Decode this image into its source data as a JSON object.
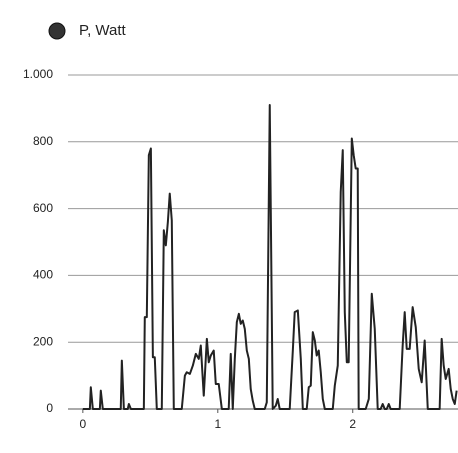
{
  "chart_data": {
    "type": "line",
    "series": [
      {
        "name": "P, Watt",
        "color": "#222222",
        "x": [
          0,
          0.052,
          0.059,
          0.074,
          0.126,
          0.133,
          0.148,
          0.281,
          0.289,
          0.304,
          0.333,
          0.341,
          0.356,
          0.452,
          0.459,
          0.474,
          0.489,
          0.504,
          0.519,
          0.533,
          0.548,
          0.585,
          0.6,
          0.615,
          0.63,
          0.644,
          0.659,
          0.674,
          0.733,
          0.756,
          0.77,
          0.793,
          0.815,
          0.837,
          0.859,
          0.874,
          0.896,
          0.919,
          0.933,
          0.948,
          0.97,
          0.985,
          1.007,
          1.03,
          1.081,
          1.096,
          1.111,
          1.126,
          1.141,
          1.156,
          1.17,
          1.185,
          1.2,
          1.215,
          1.23,
          1.244,
          1.259,
          1.274,
          1.348,
          1.363,
          1.385,
          1.407,
          1.43,
          1.444,
          1.459,
          1.533,
          1.556,
          1.57,
          1.593,
          1.615,
          1.63,
          1.659,
          1.674,
          1.689,
          1.704,
          1.719,
          1.733,
          1.748,
          1.763,
          1.778,
          1.793,
          1.852,
          1.867,
          1.889,
          1.911,
          1.926,
          1.941,
          1.956,
          1.97,
          1.993,
          2.007,
          2.022,
          2.037,
          2.044,
          2.096,
          2.119,
          2.141,
          2.163,
          2.185,
          2.207,
          2.222,
          2.237,
          2.252,
          2.267,
          2.281,
          2.348,
          2.37,
          2.385,
          2.4,
          2.422,
          2.444,
          2.467,
          2.489,
          2.511,
          2.533,
          2.556,
          2.644,
          2.659,
          2.674,
          2.689,
          2.711,
          2.726,
          2.741,
          2.756,
          2.77
        ],
        "values": [
          0,
          0,
          65,
          0,
          0,
          55,
          0,
          0,
          145,
          0,
          0,
          15,
          0,
          0,
          275,
          275,
          760,
          780,
          155,
          155,
          0,
          0,
          535,
          490,
          560,
          645,
          565,
          0,
          0,
          100,
          110,
          105,
          130,
          165,
          150,
          190,
          40,
          210,
          140,
          160,
          175,
          75,
          75,
          0,
          0,
          165,
          0,
          150,
          260,
          285,
          255,
          265,
          240,
          175,
          150,
          60,
          25,
          0,
          0,
          20,
          910,
          0,
          10,
          30,
          0,
          0,
          175,
          290,
          295,
          150,
          0,
          0,
          65,
          70,
          230,
          205,
          160,
          175,
          110,
          30,
          0,
          0,
          70,
          130,
          650,
          775,
          290,
          140,
          140,
          810,
          760,
          720,
          720,
          0,
          0,
          30,
          345,
          240,
          0,
          0,
          15,
          0,
          0,
          15,
          0,
          0,
          190,
          290,
          180,
          180,
          305,
          245,
          120,
          80,
          205,
          0,
          0,
          210,
          130,
          90,
          120,
          60,
          30,
          15,
          55
        ]
      }
    ],
    "xlim": [
      -0.11,
      2.78
    ],
    "xticks": [
      0,
      1,
      2
    ],
    "ylim": [
      0,
      1000
    ],
    "yticks": [
      0,
      200,
      400,
      600,
      800,
      {
        "value": 1000,
        "label": "1.000"
      }
    ],
    "grid": true
  }
}
